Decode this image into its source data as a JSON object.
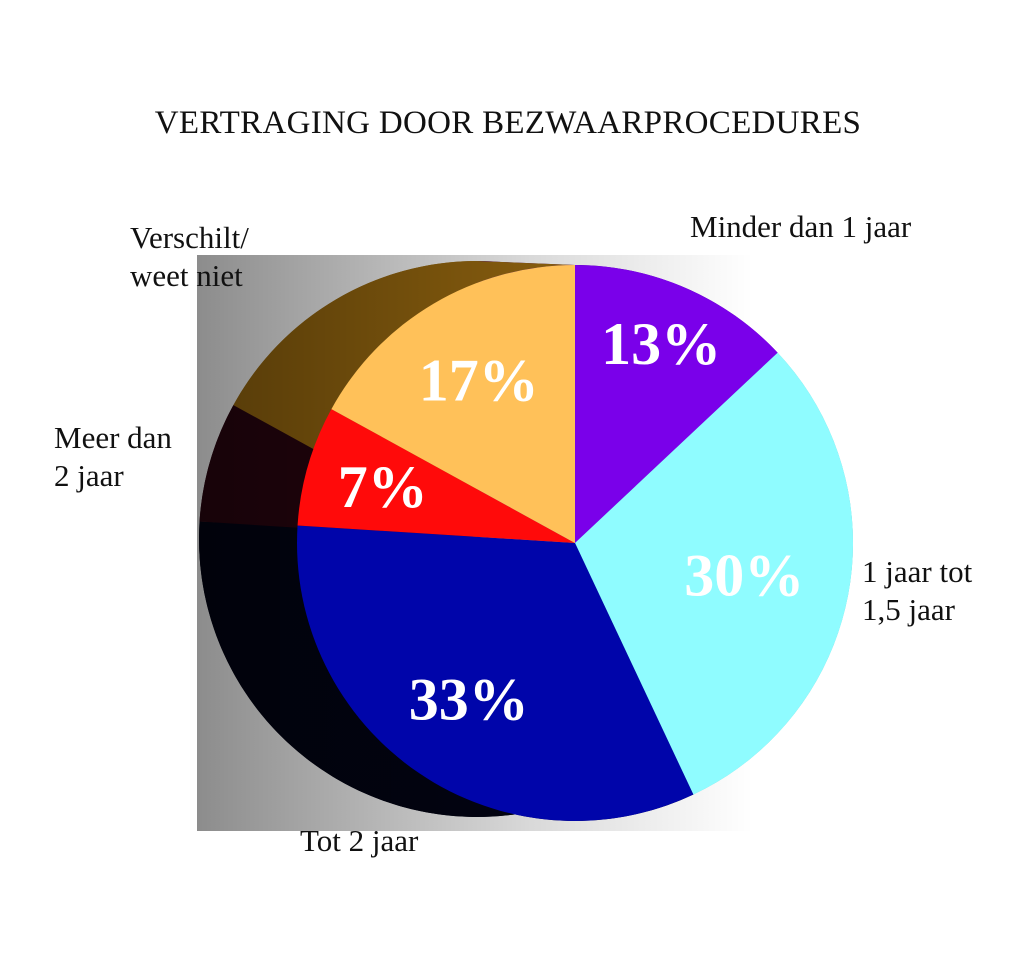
{
  "chart_data": {
    "type": "pie",
    "title": "VERTRAGING DOOR BEZWAARPROCEDURES",
    "categories": [
      "Minder dan 1 jaar",
      "1 jaar tot 1,5 jaar",
      "Tot 2 jaar",
      "Meer dan 2 jaar",
      "Verschilt/ weet niet"
    ],
    "values": [
      13,
      30,
      33,
      7,
      17
    ],
    "value_labels": [
      "13%",
      "30%",
      "33%",
      "7%",
      "17%"
    ],
    "label_lines": [
      [
        "Minder dan 1 jaar"
      ],
      [
        "1 jaar tot",
        "1,5 jaar"
      ],
      [
        "Tot 2 jaar"
      ],
      [
        "Meer dan",
        "2 jaar"
      ],
      [
        "Verschilt/",
        "weet niet"
      ]
    ],
    "colors": [
      "#7a00ea",
      "#8ffcff",
      "#0005aa",
      "#ff0a0a",
      "#ffc159"
    ],
    "side_colors": [
      "#4e0096",
      "#5fb7bb",
      "#020414",
      "#2a0510",
      "#9a6a10"
    ],
    "start_angle_deg": 0,
    "direction": "clockwise",
    "style": "3d"
  }
}
